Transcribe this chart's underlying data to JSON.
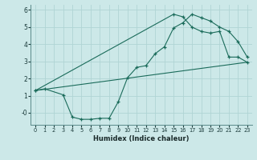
{
  "title": "",
  "xlabel": "Humidex (Indice chaleur)",
  "bg_color": "#cce8e8",
  "grid_color": "#b0d4d4",
  "line_color": "#1a6b5a",
  "xlim": [
    -0.5,
    23.5
  ],
  "ylim": [
    -0.7,
    6.3
  ],
  "xticks": [
    0,
    1,
    2,
    3,
    4,
    5,
    6,
    7,
    8,
    9,
    10,
    11,
    12,
    13,
    14,
    15,
    16,
    17,
    18,
    19,
    20,
    21,
    22,
    23
  ],
  "yticks": [
    0,
    1,
    2,
    3,
    4,
    5,
    6
  ],
  "ytick_labels": [
    "-0",
    "1",
    "2",
    "3",
    "4",
    "5",
    "6"
  ],
  "curve1_x": [
    0,
    1,
    3,
    4,
    5,
    6,
    7,
    8,
    9,
    10,
    11,
    12,
    13,
    14,
    15,
    16,
    17,
    18,
    19,
    20,
    21,
    22,
    23
  ],
  "curve1_y": [
    1.3,
    1.4,
    1.05,
    -0.25,
    -0.38,
    -0.38,
    -0.32,
    -0.32,
    0.65,
    2.05,
    2.65,
    2.75,
    3.45,
    3.85,
    4.95,
    5.25,
    5.75,
    5.55,
    5.35,
    5.0,
    4.75,
    4.15,
    3.25
  ],
  "curve2_x": [
    0,
    15,
    16,
    17,
    18,
    19,
    20,
    21,
    22,
    23
  ],
  "curve2_y": [
    1.3,
    5.75,
    5.6,
    5.0,
    4.75,
    4.65,
    4.75,
    3.25,
    3.25,
    2.95
  ],
  "curve3_x": [
    0,
    23
  ],
  "curve3_y": [
    1.3,
    2.95
  ]
}
